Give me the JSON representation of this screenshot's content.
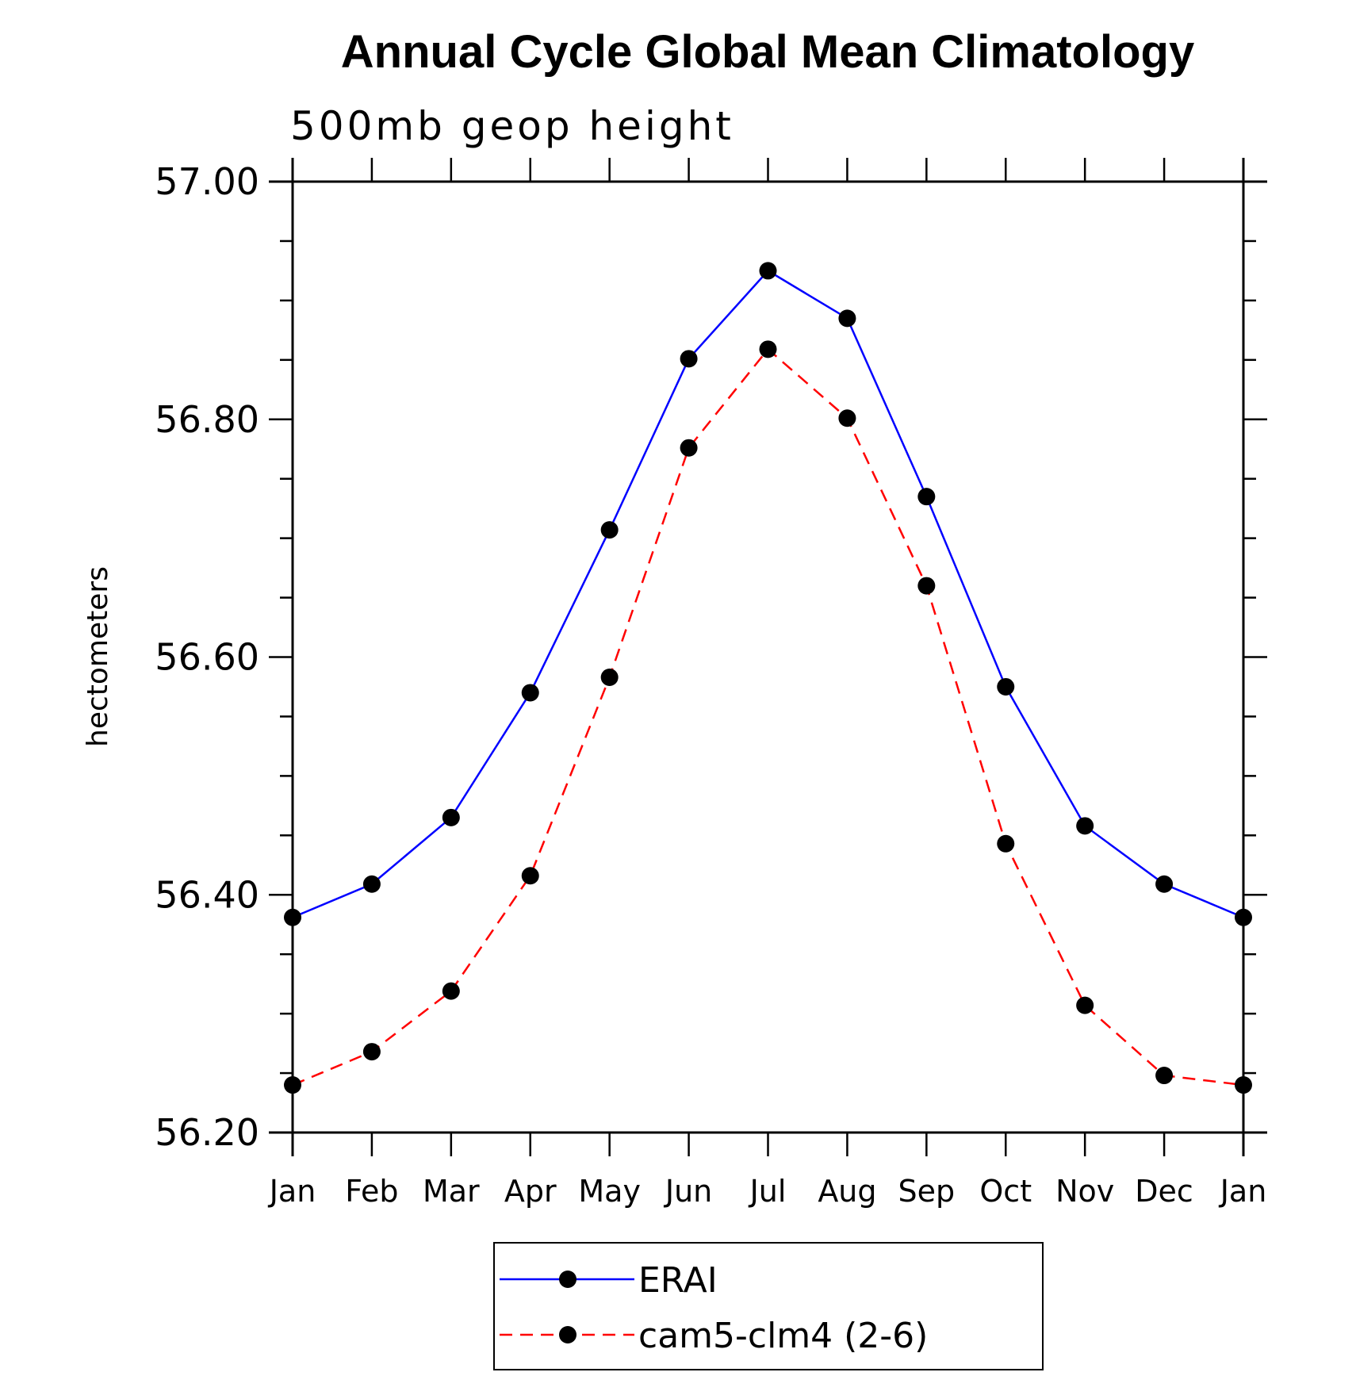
{
  "chart_data": {
    "type": "line",
    "title": "Annual Cycle Global Mean Climatology",
    "subtitle": "500mb geop height",
    "xlabel": "",
    "ylabel": "hectometers",
    "categories": [
      "Jan",
      "Feb",
      "Mar",
      "Apr",
      "May",
      "Jun",
      "Jul",
      "Aug",
      "Sep",
      "Oct",
      "Nov",
      "Dec",
      "Jan"
    ],
    "ylim": [
      56.2,
      57.0
    ],
    "yticks": [
      56.2,
      56.4,
      56.6,
      56.8,
      57.0
    ],
    "ytick_labels": [
      "56.20",
      "56.40",
      "56.60",
      "56.80",
      "57.00"
    ],
    "series": [
      {
        "name": "ERAI",
        "color": "#0000ff",
        "dash": "solid",
        "marker": "filled-circle",
        "values": [
          56.381,
          56.409,
          56.465,
          56.57,
          56.707,
          56.851,
          56.925,
          56.885,
          56.735,
          56.575,
          56.458,
          56.409,
          56.381
        ]
      },
      {
        "name": "cam5-clm4 (2-6)",
        "color": "#ff0000",
        "dash": "dashed",
        "marker": "filled-circle",
        "values": [
          56.24,
          56.268,
          56.319,
          56.416,
          56.583,
          56.776,
          56.859,
          56.801,
          56.66,
          56.443,
          56.307,
          56.248,
          56.24
        ]
      }
    ],
    "grid": false,
    "legend": "bottom"
  }
}
